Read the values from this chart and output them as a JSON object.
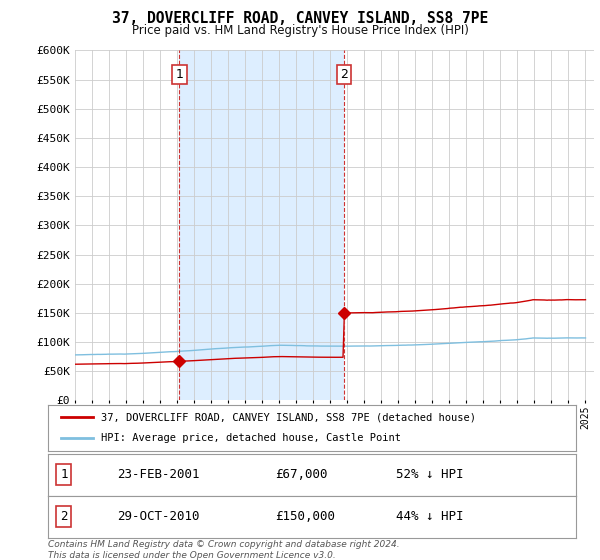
{
  "title": "37, DOVERCLIFF ROAD, CANVEY ISLAND, SS8 7PE",
  "subtitle": "Price paid vs. HM Land Registry's House Price Index (HPI)",
  "background_color": "#ffffff",
  "plot_bg_color": "#ffffff",
  "shade_color": "#ddeeff",
  "y_min": 0,
  "y_max": 600000,
  "y_ticks": [
    0,
    50000,
    100000,
    150000,
    200000,
    250000,
    300000,
    350000,
    400000,
    450000,
    500000,
    550000,
    600000
  ],
  "x_min": 1995.0,
  "x_max": 2025.5,
  "hpi_color": "#7fbfdf",
  "price_color": "#cc0000",
  "transaction1": {
    "date_num": 2001.14,
    "price": 67000,
    "label": "1",
    "date_str": "23-FEB-2001"
  },
  "transaction2": {
    "date_num": 2010.83,
    "price": 150000,
    "label": "2",
    "date_str": "29-OCT-2010"
  },
  "vline_color": "#cc3333",
  "legend_label_price": "37, DOVERCLIFF ROAD, CANVEY ISLAND, SS8 7PE (detached house)",
  "legend_label_hpi": "HPI: Average price, detached house, Castle Point",
  "footnote": "Contains HM Land Registry data © Crown copyright and database right 2024.\nThis data is licensed under the Open Government Licence v3.0.",
  "table_rows": [
    {
      "num": "1",
      "date": "23-FEB-2001",
      "price": "£67,000",
      "pct": "52% ↓ HPI"
    },
    {
      "num": "2",
      "date": "29-OCT-2010",
      "price": "£150,000",
      "pct": "44% ↓ HPI"
    }
  ]
}
